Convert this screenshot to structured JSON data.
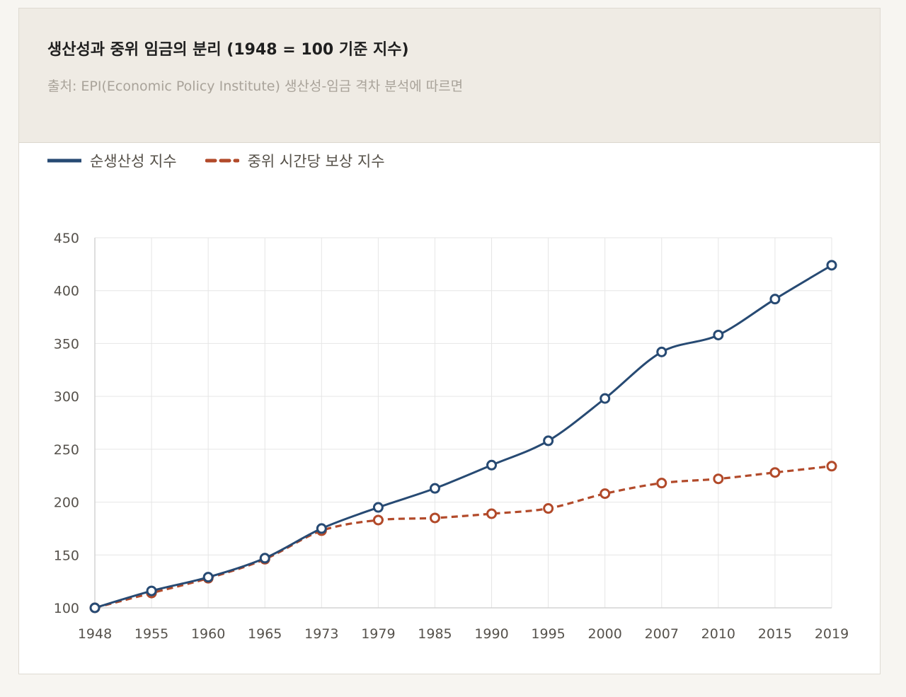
{
  "header": {
    "title": "생산성과 중위 임금의 분리 (1948 = 100 기준 지수)",
    "subtitle": "출처: EPI(Economic Policy Institute) 생산성-임금 격차 분석에 따르면"
  },
  "colors": {
    "productivity": "#274a73",
    "wage": "#b24a2a",
    "grid": "#e6e6e6"
  },
  "chart_data": {
    "type": "line",
    "categories": [
      "1948",
      "1955",
      "1960",
      "1965",
      "1973",
      "1979",
      "1985",
      "1990",
      "1995",
      "2000",
      "2007",
      "2010",
      "2015",
      "2019"
    ],
    "ylim": [
      100,
      450
    ],
    "yticks": [
      100,
      150,
      200,
      250,
      300,
      350,
      400,
      450
    ],
    "grid": true,
    "legend_position": "top-left",
    "series": [
      {
        "name": "순생산성 지수",
        "style": "solid",
        "values": [
          100,
          116,
          129,
          147,
          175,
          195,
          213,
          235,
          258,
          298,
          342,
          358,
          392,
          424
        ]
      },
      {
        "name": "중위 시간당 보상 지수",
        "style": "dashed",
        "values": [
          100,
          114,
          128,
          146,
          173,
          183,
          185,
          189,
          194,
          208,
          218,
          222,
          228,
          234
        ]
      }
    ]
  }
}
